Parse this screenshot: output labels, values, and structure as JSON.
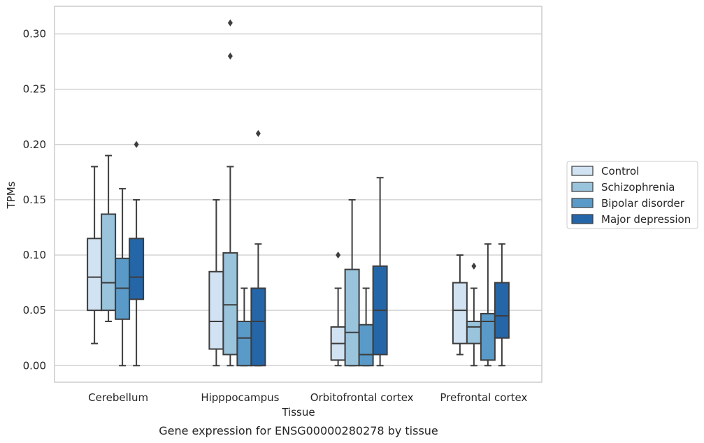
{
  "chart_data": {
    "type": "box",
    "title": "",
    "caption": "Gene expression for ENSG00000280278 by tissue",
    "xlabel": "Tissue",
    "ylabel": "TPMs",
    "ylim": [
      -0.015,
      0.325
    ],
    "yticks": [
      "0.00",
      "0.05",
      "0.10",
      "0.15",
      "0.20",
      "0.25",
      "0.30"
    ],
    "ytick_values": [
      0,
      0.05,
      0.1,
      0.15,
      0.2,
      0.25,
      0.3
    ],
    "grid": "horizontal",
    "legend_position": "right",
    "categories": [
      "Cerebellum",
      "Hipppocampus",
      "Orbitofrontal cortex",
      "Prefrontal cortex"
    ],
    "series": [
      {
        "name": "Control",
        "color": "#d1e2f2",
        "boxes": [
          {
            "whislo": 0.02,
            "q1": 0.05,
            "med": 0.08,
            "q3": 0.115,
            "whishi": 0.18,
            "fliers": []
          },
          {
            "whislo": 0.0,
            "q1": 0.015,
            "med": 0.04,
            "q3": 0.085,
            "whishi": 0.15,
            "fliers": []
          },
          {
            "whislo": 0.0,
            "q1": 0.005,
            "med": 0.02,
            "q3": 0.035,
            "whishi": 0.07,
            "fliers": [
              0.1
            ]
          },
          {
            "whislo": 0.01,
            "q1": 0.02,
            "med": 0.05,
            "q3": 0.075,
            "whishi": 0.1,
            "fliers": []
          }
        ]
      },
      {
        "name": "Schizophrenia",
        "color": "#9ac3dc",
        "boxes": [
          {
            "whislo": 0.04,
            "q1": 0.05,
            "med": 0.075,
            "q3": 0.137,
            "whishi": 0.19,
            "fliers": []
          },
          {
            "whislo": 0.0,
            "q1": 0.01,
            "med": 0.055,
            "q3": 0.102,
            "whishi": 0.18,
            "fliers": [
              0.28,
              0.31
            ]
          },
          {
            "whislo": 0.0,
            "q1": 0.0,
            "med": 0.03,
            "q3": 0.087,
            "whishi": 0.15,
            "fliers": []
          },
          {
            "whislo": 0.0,
            "q1": 0.02,
            "med": 0.035,
            "q3": 0.04,
            "whishi": 0.07,
            "fliers": [
              0.09
            ]
          }
        ]
      },
      {
        "name": "Bipolar disorder",
        "color": "#5a9ac8",
        "boxes": [
          {
            "whislo": 0.0,
            "q1": 0.042,
            "med": 0.07,
            "q3": 0.097,
            "whishi": 0.16,
            "fliers": []
          },
          {
            "whislo": 0.0,
            "q1": 0.0,
            "med": 0.025,
            "q3": 0.04,
            "whishi": 0.07,
            "fliers": []
          },
          {
            "whislo": 0.0,
            "q1": 0.0,
            "med": 0.01,
            "q3": 0.037,
            "whishi": 0.07,
            "fliers": []
          },
          {
            "whislo": 0.0,
            "q1": 0.005,
            "med": 0.04,
            "q3": 0.047,
            "whishi": 0.11,
            "fliers": []
          }
        ]
      },
      {
        "name": "Major depression",
        "color": "#2566a8",
        "boxes": [
          {
            "whislo": 0.0,
            "q1": 0.06,
            "med": 0.08,
            "q3": 0.115,
            "whishi": 0.15,
            "fliers": [
              0.2
            ]
          },
          {
            "whislo": 0.0,
            "q1": 0.0,
            "med": 0.04,
            "q3": 0.07,
            "whishi": 0.11,
            "fliers": [
              0.21
            ]
          },
          {
            "whislo": 0.0,
            "q1": 0.01,
            "med": 0.05,
            "q3": 0.09,
            "whishi": 0.17,
            "fliers": []
          },
          {
            "whislo": 0.0,
            "q1": 0.025,
            "med": 0.045,
            "q3": 0.075,
            "whishi": 0.11,
            "fliers": []
          }
        ]
      }
    ]
  }
}
